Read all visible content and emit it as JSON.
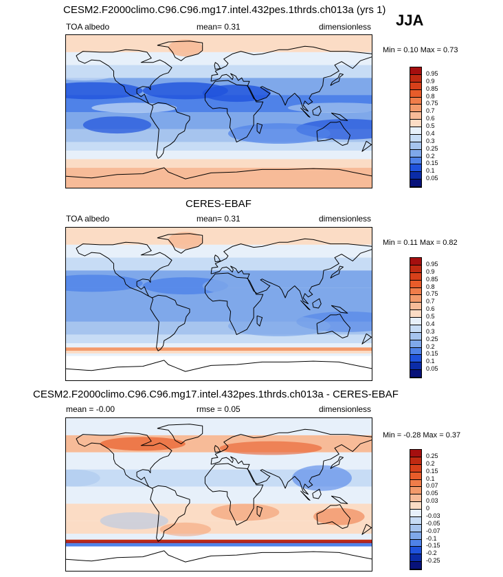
{
  "season": "JJA",
  "panels": [
    {
      "title": "CESM2.F2000climo.C96.C96.mg17.intel.432pes.1thrds.ch013a (yrs 1)",
      "left_label": "TOA albedo",
      "center_label": "mean=   0.31",
      "right_label": "dimensionless",
      "minmax": "Min =   0.10 Max =   0.73"
    },
    {
      "title": "CERES-EBAF",
      "left_label": "TOA albedo",
      "center_label": "mean=   0.31",
      "right_label": "dimensionless",
      "minmax": "Min =   0.11 Max =   0.82"
    },
    {
      "title": "CESM2.F2000climo.C96.C96.mg17.intel.432pes.1thrds.ch013a - CERES-EBAF",
      "left_label": "mean =  -0.00",
      "center_label": "rmse =   0.05",
      "right_label": "dimensionless",
      "minmax": "Min =  -0.28 Max =   0.37"
    }
  ],
  "chart_data": [
    {
      "type": "heatmap",
      "title": "CESM2.F2000climo.C96.C96.mg17.intel.432pes.1thrds.ch013a (yrs 1)",
      "variable": "TOA albedo",
      "units": "dimensionless",
      "mean": 0.31,
      "min": 0.1,
      "max": 0.73,
      "colorbar_levels": [
        "0.95",
        "0.9",
        "0.85",
        "0.8",
        "0.75",
        "0.7",
        "0.6",
        "0.5",
        "0.4",
        "0.3",
        "0.25",
        "0.2",
        "0.15",
        "0.1",
        "0.05"
      ],
      "colorbar_colors": [
        "#a50f0f",
        "#c02a12",
        "#d8401a",
        "#e85c2a",
        "#f07d4a",
        "#f39a6b",
        "#f7bb98",
        "#fbdcc5",
        "#e7f0fa",
        "#c7dcf5",
        "#a6c4ee",
        "#7fa8ea",
        "#4f82e8",
        "#1f52dc",
        "#0b2ca8",
        "#08127a"
      ]
    },
    {
      "type": "heatmap",
      "title": "CERES-EBAF",
      "variable": "TOA albedo",
      "units": "dimensionless",
      "mean": 0.31,
      "min": 0.11,
      "max": 0.82,
      "colorbar_levels": [
        "0.95",
        "0.9",
        "0.85",
        "0.8",
        "0.75",
        "0.7",
        "0.6",
        "0.5",
        "0.4",
        "0.3",
        "0.25",
        "0.2",
        "0.15",
        "0.1",
        "0.05"
      ],
      "colorbar_colors": [
        "#a50f0f",
        "#c02a12",
        "#d8401a",
        "#e85c2a",
        "#f07d4a",
        "#f39a6b",
        "#f7bb98",
        "#fbdcc5",
        "#e7f0fa",
        "#c7dcf5",
        "#a6c4ee",
        "#7fa8ea",
        "#4f82e8",
        "#1f52dc",
        "#0b2ca8",
        "#08127a"
      ]
    },
    {
      "type": "heatmap",
      "title": "CESM2.F2000climo.C96.C96.mg17.intel.432pes.1thrds.ch013a - CERES-EBAF",
      "units": "dimensionless",
      "mean": -0.0,
      "rmse": 0.05,
      "min": -0.28,
      "max": 0.37,
      "colorbar_levels": [
        "0.25",
        "0.2",
        "0.15",
        "0.1",
        "0.07",
        "0.05",
        "0.03",
        "0",
        "-0.03",
        "-0.05",
        "-0.07",
        "-0.1",
        "-0.15",
        "-0.2",
        "-0.25"
      ],
      "colorbar_colors": [
        "#a50f0f",
        "#c02a12",
        "#d8401a",
        "#e85c2a",
        "#f07d4a",
        "#f39a6b",
        "#f7bb98",
        "#fbdcc5",
        "#e7f0fa",
        "#c7dcf5",
        "#a6c4ee",
        "#7fa8ea",
        "#4f82e8",
        "#1f52dc",
        "#0b2ca8",
        "#08127a"
      ]
    }
  ]
}
